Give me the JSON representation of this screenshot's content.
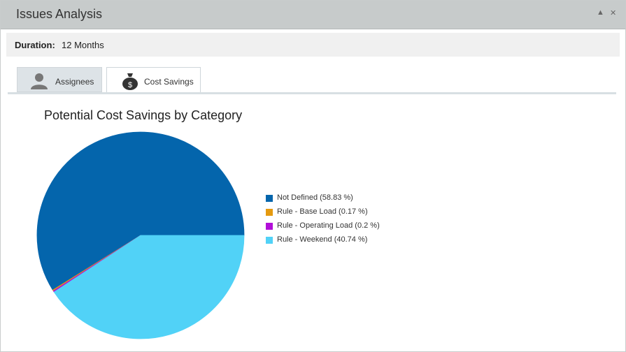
{
  "window": {
    "title": "Issues Analysis",
    "collapse_glyph": "▲",
    "close_glyph": "✕"
  },
  "duration": {
    "label": "Duration:",
    "value": "12 Months"
  },
  "tabs": [
    {
      "label": "Assignees",
      "icon": "person-icon",
      "active": false
    },
    {
      "label": "Cost Savings",
      "icon": "money-bag-icon",
      "active": true
    }
  ],
  "chart_data": {
    "type": "pie",
    "title": "Potential Cost Savings by Category",
    "legend_position": "right",
    "slices": [
      {
        "label": "Not Defined (58.83 %)",
        "value": 58.83,
        "color": "#0465ac"
      },
      {
        "label": "Rule - Base Load (0.17 %)",
        "value": 0.17,
        "color": "#e59a0f"
      },
      {
        "label": "Rule - Operating Load (0.2 %)",
        "value": 0.2,
        "color": "#b20fd8"
      },
      {
        "label": "Rule - Weekend (40.74 %)",
        "value": 40.74,
        "color": "#51d2f7"
      }
    ]
  }
}
